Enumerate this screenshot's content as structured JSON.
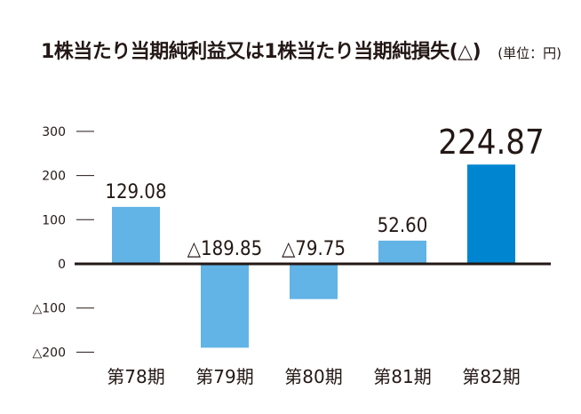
{
  "header": {
    "title": "1株当たり当期純利益又は1株当たり当期純損失(△)",
    "unit": "(単位：円)"
  },
  "chart_data": {
    "type": "bar",
    "title": "1株当たり当期純利益又は1株当たり当期純損失(△)",
    "unit": "(単位：円)",
    "categories": [
      "第78期",
      "第79期",
      "第80期",
      "第81期",
      "第82期"
    ],
    "values": [
      129.08,
      -189.85,
      -79.75,
      52.6,
      224.87
    ],
    "data_labels": [
      "129.08",
      "△189.85",
      "△79.75",
      "52.60",
      "224.87"
    ],
    "yticks": [
      300,
      200,
      100,
      0,
      -100,
      -200
    ],
    "ytick_labels": [
      "300",
      "200",
      "100",
      "0",
      "△100",
      "△200"
    ],
    "ylim": [
      -200,
      300
    ],
    "grid": false,
    "colors": {
      "bar": "#62b3e6",
      "highlight": "#0086d1",
      "axis": "#231815"
    },
    "highlight_index": 4
  }
}
